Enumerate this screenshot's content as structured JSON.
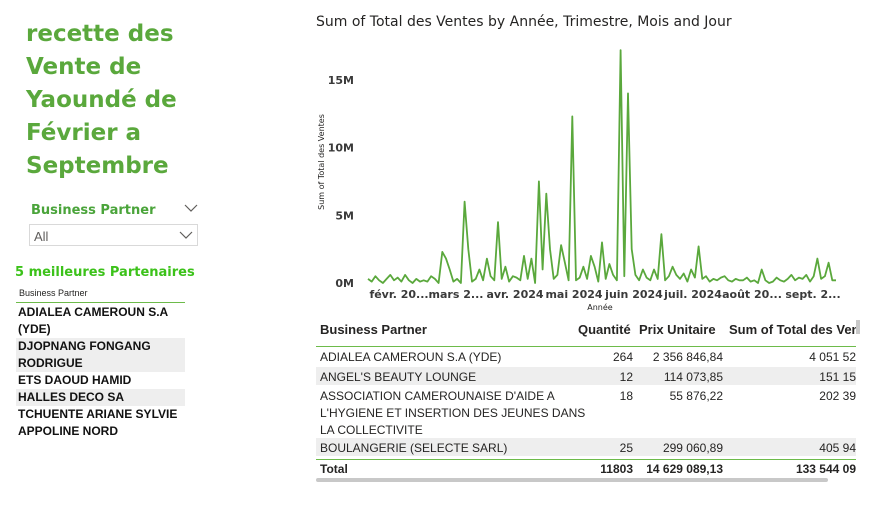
{
  "title_lines": [
    "recette des",
    "Vente de",
    "Yaoundé de",
    "Février a",
    "Septembre"
  ],
  "slicer": {
    "label": "Business Partner",
    "value": "All"
  },
  "top5": {
    "title": "5 meilleures Partenaires",
    "header": "Business Partner",
    "items": [
      "ADIALEA CAMEROUN S.A (YDE)",
      "DJOPNANG FONGANG RODRIGUE",
      "ETS DAOUD HAMID",
      "HALLES DECO SA",
      "TCHUENTE ARIANE SYLVIE APPOLINE NORD"
    ]
  },
  "chart_data": {
    "type": "line",
    "title": "Sum of Total des Ventes by Année, Trimestre, Mois and Jour",
    "xlabel": "Année",
    "ylabel": "Sum of Total des Ventes",
    "y_ticks": [
      "0M",
      "5M",
      "10M",
      "15M"
    ],
    "ylim": [
      0,
      17500000
    ],
    "x_ticks": [
      "févr. 20...",
      "mars 2...",
      "avr. 2024",
      "mai 2024",
      "juin 2024",
      "juil. 2024",
      "août 20...",
      "sept. 2..."
    ],
    "color": "#5aa83c",
    "grid": false,
    "values": [
      0.3,
      0.1,
      0.5,
      0.2,
      0.0,
      0.3,
      0.6,
      0.2,
      0.4,
      0.1,
      0.6,
      0.2,
      0.0,
      0.3,
      0.1,
      0.2,
      0.1,
      0.5,
      0.3,
      0.0,
      2.3,
      1.8,
      1.0,
      0.1,
      0.3,
      0.0,
      6.0,
      2.5,
      0.1,
      0.3,
      1.0,
      0.2,
      1.8,
      0.5,
      0.2,
      4.5,
      0.3,
      1.2,
      0.1,
      0.5,
      0.4,
      0.2,
      2.0,
      0.3,
      1.8,
      0.0,
      7.5,
      1.0,
      6.6,
      2.5,
      0.3,
      0.6,
      2.8,
      1.5,
      0.2,
      12.3,
      0.2,
      0.4,
      1.2,
      0.3,
      2.0,
      1.2,
      0.1,
      3.0,
      0.3,
      1.4,
      0.6,
      0.2,
      17.2,
      0.5,
      14.0,
      2.5,
      0.6,
      0.2,
      1.0,
      0.4,
      0.2,
      1.0,
      0.3,
      3.6,
      0.2,
      0.5,
      1.2,
      0.6,
      0.3,
      0.7,
      0.1,
      1.0,
      0.4,
      2.7,
      0.3,
      0.5,
      0.1,
      0.3,
      0.2,
      0.4,
      0.5,
      0.2,
      0.1,
      0.3,
      0.2,
      0.2,
      0.4,
      0.1,
      0.2,
      0.0,
      1.0,
      0.2,
      0.0,
      0.1,
      0.4,
      0.2,
      0.1,
      0.3,
      0.6,
      0.2,
      0.4,
      0.3,
      0.6,
      0.1,
      0.5,
      1.8,
      0.3,
      0.5,
      1.5,
      0.2,
      0.2
    ]
  },
  "table": {
    "headers": [
      "Business Partner",
      "Quantité",
      "Prix Unitaire",
      "Sum of Total des Ven"
    ],
    "rows": [
      {
        "partner_lines": [
          "ADIALEA CAMEROUN S.A (YDE)"
        ],
        "qty": "264",
        "price": "2 356 846,84",
        "total": "4 051 52"
      },
      {
        "partner_lines": [
          "ANGEL'S BEAUTY LOUNGE"
        ],
        "qty": "12",
        "price": "114 073,85",
        "total": "151 15"
      },
      {
        "partner_lines": [
          "ASSOCIATION CAMEROUNAISE D'AIDE A",
          "L'HYGIENE ET INSERTION DES JEUNES DANS",
          "LA COLLECTIVITE"
        ],
        "qty": "18",
        "price": "55 876,22",
        "total": "202 39"
      },
      {
        "partner_lines": [
          "BOULANGERIE (SELECTE SARL)"
        ],
        "qty": "25",
        "price": "299 060,89",
        "total": "405 94"
      }
    ],
    "total": {
      "label": "Total",
      "qty": "11803",
      "price": "14 629 089,13",
      "total": "133 544 09"
    }
  }
}
